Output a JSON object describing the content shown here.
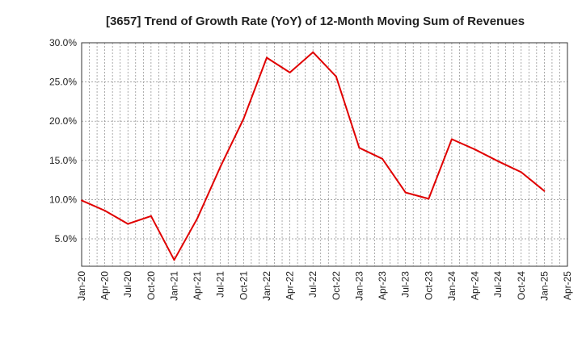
{
  "chart_data": {
    "type": "line",
    "title": "[3657]  Trend of Growth Rate (YoY) of 12-Month Moving Sum of Revenues",
    "xlabel": "",
    "ylabel": "",
    "ylim": [
      1.5,
      30
    ],
    "yticks": [
      5,
      10,
      15,
      20,
      25,
      30
    ],
    "ytick_labels": [
      "5.0%",
      "10.0%",
      "15.0%",
      "20.0%",
      "25.0%",
      "30.0%"
    ],
    "xtick_labels": [
      "Jan-20",
      "Apr-20",
      "Jul-20",
      "Oct-20",
      "Jan-21",
      "Apr-21",
      "Jul-21",
      "Oct-21",
      "Jan-22",
      "Apr-22",
      "Jul-22",
      "Oct-22",
      "Jan-23",
      "Apr-23",
      "Jul-23",
      "Oct-23",
      "Jan-24",
      "Apr-24",
      "Jul-24",
      "Oct-24",
      "Jan-25",
      "Apr-25"
    ],
    "grid": true,
    "legend": "none",
    "series": [
      {
        "color": "#e00000",
        "x": [
          "Jan-20",
          "Apr-20",
          "Jul-20",
          "Oct-20",
          "Jan-21",
          "Apr-21",
          "Jul-21",
          "Oct-21",
          "Jan-22",
          "Apr-22",
          "Jul-22",
          "Oct-22",
          "Jan-23",
          "Apr-23",
          "Jul-23",
          "Oct-23",
          "Jan-24",
          "Apr-24",
          "Jul-24",
          "Oct-24",
          "Jan-25"
        ],
        "values": [
          9.9,
          8.6,
          6.9,
          7.9,
          2.3,
          7.6,
          14.2,
          20.3,
          28.1,
          26.2,
          28.8,
          25.7,
          16.6,
          15.2,
          10.9,
          10.1,
          17.7,
          16.4,
          14.9,
          13.5,
          11.1
        ]
      }
    ]
  }
}
